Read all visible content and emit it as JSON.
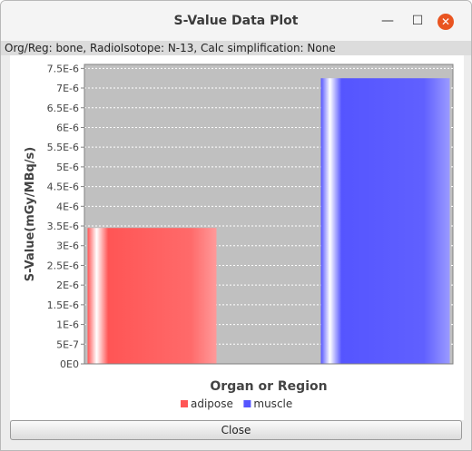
{
  "window": {
    "title": "S-Value Data Plot",
    "minimize_glyph": "—",
    "maximize_glyph": "☐",
    "close_glyph": "✕"
  },
  "header": {
    "subtitle": "Org/Reg: bone, RadioIsotope: N-13, Calc simplification: None"
  },
  "footer": {
    "close_label": "Close"
  },
  "chart_data": {
    "type": "bar",
    "categories": [
      "adipose",
      "muscle"
    ],
    "values": [
      3.45e-06,
      7.25e-06
    ],
    "colors": [
      "#ff5555",
      "#5555ff"
    ],
    "xlabel": "Organ or Region",
    "ylabel": "S-Value(mGy/MBq/s)",
    "ylim": [
      0,
      7.6e-06
    ],
    "yticks": [
      0,
      5e-07,
      1e-06,
      1.5e-06,
      2e-06,
      2.5e-06,
      3e-06,
      3.5e-06,
      4e-06,
      4.5e-06,
      5e-06,
      5.5e-06,
      6e-06,
      6.5e-06,
      7e-06,
      7.5e-06
    ],
    "ytick_labels": [
      "0E0",
      "5E-7",
      "1E-6",
      "1.5E-6",
      "2E-6",
      "2.5E-6",
      "3E-6",
      "3.5E-6",
      "4E-6",
      "4.5E-6",
      "5E-6",
      "5.5E-6",
      "6E-6",
      "6.5E-6",
      "7E-6",
      "7.5E-6"
    ],
    "grid": true,
    "legend": [
      "adipose",
      "muscle"
    ],
    "legend_position": "bottom"
  }
}
